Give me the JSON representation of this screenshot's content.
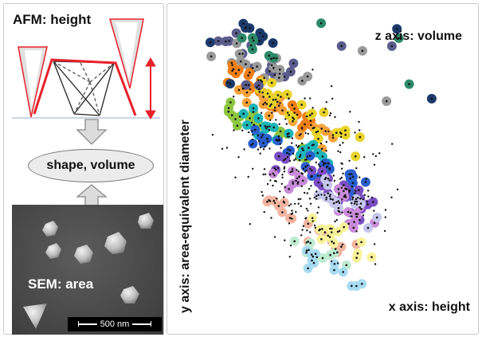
{
  "left": {
    "afm_title": "AFM: height",
    "shape_volume": "shape, volume",
    "sem_label": "SEM: area",
    "scale_bar": "500 nm"
  },
  "right": {
    "z_axis_label": "z axis: volume",
    "y_axis_label": "y axis: area-equivalent diameter",
    "x_axis_label": "x axis: height"
  },
  "colors": {
    "afm_red": "#e8202a",
    "arrow_gray": "#9a9a9a",
    "palette": [
      "#1b3a6b",
      "#5a5c8c",
      "#9a9a9a",
      "#2d8a6a",
      "#f07f16",
      "#f6a23a",
      "#e8d32a",
      "#8dc63f",
      "#1fb5b8",
      "#2a5fcf",
      "#7b4fc4",
      "#c98bd9",
      "#f2b5a0",
      "#f8f29a",
      "#bdebd0",
      "#a7dbf2",
      "#c7c7ee"
    ]
  },
  "icons": [
    "down-arrow-icon",
    "up-arrow-icon",
    "double-arrow-icon"
  ]
}
